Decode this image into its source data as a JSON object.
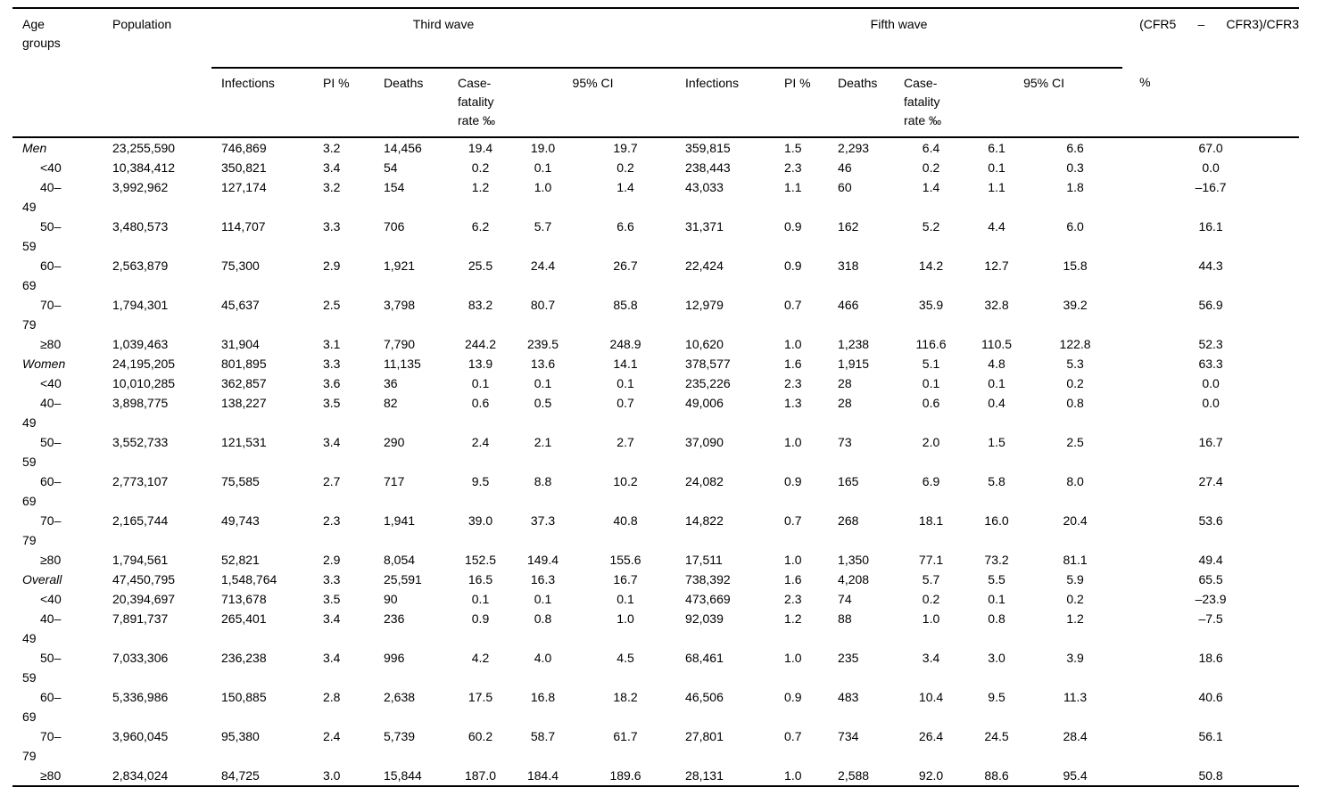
{
  "table": {
    "header": {
      "age_groups": "Age\ngroups",
      "population": "Population",
      "third_wave": "Third wave",
      "fifth_wave": "Fifth wave",
      "cfr_formula": "(CFR5 – CFR3)/CFR3",
      "cfr_formula_unit": "%",
      "sub": {
        "infections": "Infections",
        "pi": "PI %",
        "deaths": "Deaths",
        "cfr": "Case-\nfatality\nrate ‰",
        "ci": "95% CI"
      }
    },
    "rows": [
      {
        "label": "Men",
        "style": "group",
        "values": [
          "23,255,590",
          "746,869",
          "3.2",
          "14,456",
          "19.4",
          "19.0",
          "19.7",
          "359,815",
          "1.5",
          "2,293",
          "6.4",
          "6.1",
          "6.6",
          "67.0"
        ]
      },
      {
        "label": "<40",
        "style": "sub",
        "values": [
          "10,384,412",
          "350,821",
          "3.4",
          "54",
          "0.2",
          "0.1",
          "0.2",
          "238,443",
          "2.3",
          "46",
          "0.2",
          "0.1",
          "0.3",
          "0.0"
        ]
      },
      {
        "label": "40–\n49",
        "style": "sub",
        "values": [
          "3,992,962",
          "127,174",
          "3.2",
          "154",
          "1.2",
          "1.0",
          "1.4",
          "43,033",
          "1.1",
          "60",
          "1.4",
          "1.1",
          "1.8",
          "–16.7"
        ]
      },
      {
        "label": "50–\n59",
        "style": "sub",
        "values": [
          "3,480,573",
          "114,707",
          "3.3",
          "706",
          "6.2",
          "5.7",
          "6.6",
          "31,371",
          "0.9",
          "162",
          "5.2",
          "4.4",
          "6.0",
          "16.1"
        ]
      },
      {
        "label": "60–\n69",
        "style": "sub",
        "values": [
          "2,563,879",
          "75,300",
          "2.9",
          "1,921",
          "25.5",
          "24.4",
          "26.7",
          "22,424",
          "0.9",
          "318",
          "14.2",
          "12.7",
          "15.8",
          "44.3"
        ]
      },
      {
        "label": "70–\n79",
        "style": "sub",
        "values": [
          "1,794,301",
          "45,637",
          "2.5",
          "3,798",
          "83.2",
          "80.7",
          "85.8",
          "12,979",
          "0.7",
          "466",
          "35.9",
          "32.8",
          "39.2",
          "56.9"
        ]
      },
      {
        "label": "≥80",
        "style": "sub",
        "values": [
          "1,039,463",
          "31,904",
          "3.1",
          "7,790",
          "244.2",
          "239.5",
          "248.9",
          "10,620",
          "1.0",
          "1,238",
          "116.6",
          "110.5",
          "122.8",
          "52.3"
        ]
      },
      {
        "label": "Women",
        "style": "group",
        "values": [
          "24,195,205",
          "801,895",
          "3.3",
          "11,135",
          "13.9",
          "13.6",
          "14.1",
          "378,577",
          "1.6",
          "1,915",
          "5.1",
          "4.8",
          "5.3",
          "63.3"
        ]
      },
      {
        "label": "<40",
        "style": "sub",
        "values": [
          "10,010,285",
          "362,857",
          "3.6",
          "36",
          "0.1",
          "0.1",
          "0.1",
          "235,226",
          "2.3",
          "28",
          "0.1",
          "0.1",
          "0.2",
          "0.0"
        ]
      },
      {
        "label": "40–\n49",
        "style": "sub",
        "values": [
          "3,898,775",
          "138,227",
          "3.5",
          "82",
          "0.6",
          "0.5",
          "0.7",
          "49,006",
          "1.3",
          "28",
          "0.6",
          "0.4",
          "0.8",
          "0.0"
        ]
      },
      {
        "label": "50–\n59",
        "style": "sub",
        "values": [
          "3,552,733",
          "121,531",
          "3.4",
          "290",
          "2.4",
          "2.1",
          "2.7",
          "37,090",
          "1.0",
          "73",
          "2.0",
          "1.5",
          "2.5",
          "16.7"
        ]
      },
      {
        "label": "60–\n69",
        "style": "sub",
        "values": [
          "2,773,107",
          "75,585",
          "2.7",
          "717",
          "9.5",
          "8.8",
          "10.2",
          "24,082",
          "0.9",
          "165",
          "6.9",
          "5.8",
          "8.0",
          "27.4"
        ]
      },
      {
        "label": "70–\n79",
        "style": "sub",
        "values": [
          "2,165,744",
          "49,743",
          "2.3",
          "1,941",
          "39.0",
          "37.3",
          "40.8",
          "14,822",
          "0.7",
          "268",
          "18.1",
          "16.0",
          "20.4",
          "53.6"
        ]
      },
      {
        "label": "≥80",
        "style": "sub",
        "values": [
          "1,794,561",
          "52,821",
          "2.9",
          "8,054",
          "152.5",
          "149.4",
          "155.6",
          "17,511",
          "1.0",
          "1,350",
          "77.1",
          "73.2",
          "81.1",
          "49.4"
        ]
      },
      {
        "label": "Overall",
        "style": "group",
        "values": [
          "47,450,795",
          "1,548,764",
          "3.3",
          "25,591",
          "16.5",
          "16.3",
          "16.7",
          "738,392",
          "1.6",
          "4,208",
          "5.7",
          "5.5",
          "5.9",
          "65.5"
        ]
      },
      {
        "label": "<40",
        "style": "sub",
        "values": [
          "20,394,697",
          "713,678",
          "3.5",
          "90",
          "0.1",
          "0.1",
          "0.1",
          "473,669",
          "2.3",
          "74",
          "0.2",
          "0.1",
          "0.2",
          "–23.9"
        ]
      },
      {
        "label": "40–\n49",
        "style": "sub",
        "values": [
          "7,891,737",
          "265,401",
          "3.4",
          "236",
          "0.9",
          "0.8",
          "1.0",
          "92,039",
          "1.2",
          "88",
          "1.0",
          "0.8",
          "1.2",
          "–7.5"
        ]
      },
      {
        "label": "50–\n59",
        "style": "sub",
        "values": [
          "7,033,306",
          "236,238",
          "3.4",
          "996",
          "4.2",
          "4.0",
          "4.5",
          "68,461",
          "1.0",
          "235",
          "3.4",
          "3.0",
          "3.9",
          "18.6"
        ]
      },
      {
        "label": "60–\n69",
        "style": "sub",
        "values": [
          "5,336,986",
          "150,885",
          "2.8",
          "2,638",
          "17.5",
          "16.8",
          "18.2",
          "46,506",
          "0.9",
          "483",
          "10.4",
          "9.5",
          "11.3",
          "40.6"
        ]
      },
      {
        "label": "70–\n79",
        "style": "sub",
        "values": [
          "3,960,045",
          "95,380",
          "2.4",
          "5,739",
          "60.2",
          "58.7",
          "61.7",
          "27,801",
          "0.7",
          "734",
          "26.4",
          "24.5",
          "28.4",
          "56.1"
        ]
      },
      {
        "label": "≥80",
        "style": "sub",
        "values": [
          "2,834,024",
          "84,725",
          "3.0",
          "15,844",
          "187.0",
          "184.4",
          "189.6",
          "28,131",
          "1.0",
          "2,588",
          "92.0",
          "88.6",
          "95.4",
          "50.8"
        ]
      }
    ]
  }
}
